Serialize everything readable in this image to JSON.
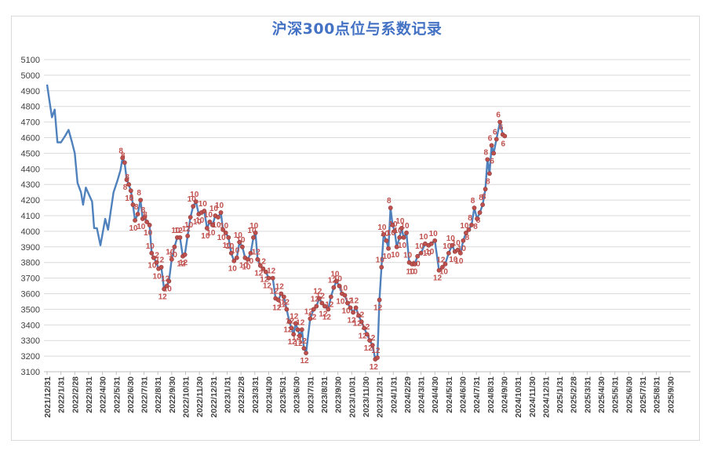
{
  "chart_data": {
    "type": "line",
    "title": "沪深300点位与系数记录",
    "xlabel": "",
    "ylabel": "",
    "ylim": [
      3100,
      5100
    ],
    "ytick_step": 100,
    "grid": true,
    "legend": "none",
    "colors": {
      "line": "#4f81bd",
      "marker": "#c0504d",
      "label": "#c0504d",
      "grid": "#d9d9d9"
    },
    "x_ticks": [
      "2021/12/31",
      "2022/1/31",
      "2022/2/28",
      "2022/3/31",
      "2022/4/30",
      "2022/5/31",
      "2022/6/30",
      "2022/7/31",
      "2022/8/31",
      "2022/9/30",
      "2022/10/31",
      "2022/11/30",
      "2022/12/31",
      "2023/1/31",
      "2023/2/28",
      "2023/3/31",
      "2023/4/30",
      "2023/5/31",
      "2023/6/30",
      "2023/7/31",
      "2023/8/31",
      "2023/9/30",
      "2023/10/31",
      "2023/11/30",
      "2023/12/31",
      "2024/1/31",
      "2024/2/29",
      "2024/3/31",
      "2024/4/30",
      "2024/5/31",
      "2024/6/30",
      "2024/7/31",
      "2024/8/31",
      "2024/9/30",
      "2024/10/31",
      "2024/11/30",
      "2024/12/31",
      "2025/1/31",
      "2025/2/28",
      "2025/3/31",
      "2025/4/30",
      "2025/5/31",
      "2025/6/30",
      "2025/7/31",
      "2025/8/31",
      "2025/9/30"
    ],
    "series": [
      {
        "points": [
          [
            0.0,
            4940,
            null
          ],
          [
            0.2,
            4820,
            null
          ],
          [
            0.35,
            4730,
            null
          ],
          [
            0.55,
            4780,
            null
          ],
          [
            0.75,
            4570,
            null
          ],
          [
            1.0,
            4570,
            null
          ],
          [
            1.3,
            4610,
            null
          ],
          [
            1.55,
            4650,
            null
          ],
          [
            1.8,
            4570,
            null
          ],
          [
            2.0,
            4500,
            null
          ],
          [
            2.2,
            4310,
            null
          ],
          [
            2.45,
            4250,
            null
          ],
          [
            2.6,
            4170,
            null
          ],
          [
            2.8,
            4280,
            null
          ],
          [
            3.1,
            4220,
            null
          ],
          [
            3.25,
            4190,
            null
          ],
          [
            3.4,
            4020,
            null
          ],
          [
            3.6,
            4020,
            null
          ],
          [
            3.85,
            3910,
            null
          ],
          [
            4.2,
            4080,
            null
          ],
          [
            4.4,
            4010,
            null
          ],
          [
            4.6,
            4130,
            null
          ],
          [
            4.8,
            4250,
            null
          ],
          [
            5.1,
            4330,
            null
          ],
          [
            5.3,
            4390,
            null
          ],
          [
            5.45,
            4470,
            "8"
          ],
          [
            5.6,
            4440,
            "8"
          ],
          [
            5.75,
            4330,
            "8"
          ],
          [
            5.9,
            4300,
            "8"
          ],
          [
            6.05,
            4260,
            "10"
          ],
          [
            6.2,
            4170,
            "8"
          ],
          [
            6.35,
            4070,
            "10"
          ],
          [
            6.55,
            4110,
            "8"
          ],
          [
            6.75,
            4200,
            "8"
          ],
          [
            6.9,
            4080,
            "10"
          ],
          [
            7.05,
            4090,
            "8"
          ],
          [
            7.2,
            4060,
            "8"
          ],
          [
            7.4,
            4040,
            "10"
          ],
          [
            7.55,
            3860,
            "10"
          ],
          [
            7.7,
            3830,
            "10"
          ],
          [
            7.9,
            3800,
            "12"
          ],
          [
            8.05,
            3760,
            "10"
          ],
          [
            8.25,
            3770,
            "12"
          ],
          [
            8.45,
            3630,
            "12"
          ],
          [
            8.65,
            3650,
            "12"
          ],
          [
            8.8,
            3680,
            "10"
          ],
          [
            9.0,
            3820,
            "10"
          ],
          [
            9.2,
            3900,
            "10"
          ],
          [
            9.4,
            3960,
            "10"
          ],
          [
            9.6,
            3960,
            "12"
          ],
          [
            9.8,
            3840,
            "12"
          ],
          [
            9.95,
            3850,
            "12"
          ],
          [
            10.15,
            3970,
            "12"
          ],
          [
            10.35,
            4090,
            "10"
          ],
          [
            10.55,
            4160,
            "10"
          ],
          [
            10.75,
            4190,
            "10"
          ],
          [
            10.95,
            4110,
            "10"
          ],
          [
            11.15,
            4120,
            "10"
          ],
          [
            11.35,
            4130,
            "10"
          ],
          [
            11.55,
            4020,
            "10"
          ],
          [
            11.75,
            4060,
            "10"
          ],
          [
            11.95,
            4040,
            "10"
          ],
          [
            12.15,
            4100,
            "10"
          ],
          [
            12.35,
            4090,
            "10"
          ],
          [
            12.55,
            4120,
            "10"
          ],
          [
            12.7,
            4010,
            "10"
          ],
          [
            12.9,
            3990,
            "10"
          ],
          [
            13.1,
            3960,
            "10"
          ],
          [
            13.3,
            3860,
            "10"
          ],
          [
            13.5,
            3810,
            "10"
          ],
          [
            13.7,
            3830,
            "10"
          ],
          [
            13.9,
            3930,
            "10"
          ],
          [
            14.1,
            3900,
            "10"
          ],
          [
            14.3,
            3830,
            "10"
          ],
          [
            14.5,
            3820,
            "10"
          ],
          [
            14.7,
            3860,
            "10"
          ],
          [
            14.9,
            3960,
            "10"
          ],
          [
            15.05,
            3990,
            "10"
          ],
          [
            15.2,
            3820,
            "12"
          ],
          [
            15.4,
            3780,
            "12"
          ],
          [
            15.6,
            3760,
            "12"
          ],
          [
            15.8,
            3740,
            "12"
          ],
          [
            16.0,
            3700,
            "12"
          ],
          [
            16.3,
            3700,
            "12"
          ],
          [
            16.5,
            3570,
            "12"
          ],
          [
            16.7,
            3560,
            "12"
          ],
          [
            16.9,
            3600,
            "12"
          ],
          [
            17.1,
            3580,
            "12"
          ],
          [
            17.3,
            3500,
            "12"
          ],
          [
            17.5,
            3420,
            "12"
          ],
          [
            17.65,
            3380,
            "12"
          ],
          [
            17.8,
            3340,
            "12"
          ],
          [
            17.95,
            3410,
            "12"
          ],
          [
            18.1,
            3370,
            "12"
          ],
          [
            18.25,
            3330,
            "12"
          ],
          [
            18.4,
            3370,
            "12"
          ],
          [
            18.55,
            3250,
            "12"
          ],
          [
            18.7,
            3220,
            "12"
          ],
          [
            19.0,
            3440,
            "12"
          ],
          [
            19.25,
            3500,
            "12"
          ],
          [
            19.45,
            3520,
            "12"
          ],
          [
            19.65,
            3570,
            "12"
          ],
          [
            19.85,
            3540,
            "12"
          ],
          [
            20.05,
            3520,
            "12"
          ],
          [
            20.3,
            3500,
            "12"
          ],
          [
            20.5,
            3580,
            "12"
          ],
          [
            20.7,
            3640,
            "12"
          ],
          [
            20.9,
            3680,
            "10"
          ],
          [
            21.1,
            3650,
            "10"
          ],
          [
            21.3,
            3600,
            "10"
          ],
          [
            21.5,
            3590,
            "10"
          ],
          [
            21.7,
            3540,
            "10"
          ],
          [
            21.9,
            3510,
            "12"
          ],
          [
            22.1,
            3480,
            "12"
          ],
          [
            22.3,
            3510,
            "12"
          ],
          [
            22.5,
            3460,
            "12"
          ],
          [
            22.7,
            3420,
            "12"
          ],
          [
            22.9,
            3380,
            "12"
          ],
          [
            23.1,
            3340,
            "12"
          ],
          [
            23.3,
            3300,
            "12"
          ],
          [
            23.5,
            3270,
            "12"
          ],
          [
            23.7,
            3180,
            "12"
          ],
          [
            23.85,
            3190,
            "12"
          ],
          [
            24.0,
            3560,
            "12"
          ],
          [
            24.15,
            3770,
            "10"
          ],
          [
            24.3,
            3980,
            "10"
          ],
          [
            24.5,
            3940,
            "10"
          ],
          [
            24.65,
            3890,
            "10"
          ],
          [
            24.8,
            4150,
            "8"
          ],
          [
            24.95,
            4040,
            "10"
          ],
          [
            25.1,
            4000,
            "10"
          ],
          [
            25.25,
            3900,
            "10"
          ],
          [
            25.45,
            3960,
            "10"
          ],
          [
            25.6,
            4020,
            "10"
          ],
          [
            25.75,
            3960,
            "10"
          ],
          [
            25.95,
            3990,
            "10"
          ],
          [
            26.15,
            3800,
            "10"
          ],
          [
            26.35,
            3790,
            "10"
          ],
          [
            26.55,
            3790,
            "10"
          ],
          [
            26.75,
            3840,
            "10"
          ],
          [
            27.0,
            3860,
            "10"
          ],
          [
            27.3,
            3920,
            "10"
          ],
          [
            27.55,
            3910,
            "10"
          ],
          [
            27.75,
            3920,
            "10"
          ],
          [
            28.0,
            3940,
            "10"
          ],
          [
            28.3,
            3750,
            "12"
          ],
          [
            28.55,
            3770,
            "12"
          ],
          [
            28.75,
            3790,
            "10"
          ],
          [
            29.0,
            3860,
            "10"
          ],
          [
            29.25,
            3910,
            "10"
          ],
          [
            29.45,
            3870,
            "10"
          ],
          [
            29.65,
            3880,
            "10"
          ],
          [
            29.85,
            3860,
            "10"
          ],
          [
            30.05,
            3940,
            "10"
          ],
          [
            30.25,
            3990,
            "10"
          ],
          [
            30.45,
            4010,
            "8"
          ],
          [
            30.65,
            4040,
            "8"
          ],
          [
            30.85,
            4150,
            "8"
          ],
          [
            31.05,
            4080,
            "8"
          ],
          [
            31.25,
            4120,
            "8"
          ],
          [
            31.45,
            4170,
            "8"
          ],
          [
            31.65,
            4270,
            "8"
          ],
          [
            31.8,
            4460,
            "8"
          ],
          [
            31.95,
            4370,
            "8"
          ],
          [
            32.1,
            4550,
            "6"
          ],
          [
            32.25,
            4500,
            "6"
          ],
          [
            32.45,
            4590,
            "6"
          ],
          [
            32.7,
            4700,
            "6"
          ],
          [
            32.9,
            4620,
            "6"
          ],
          [
            33.05,
            4610,
            "6"
          ]
        ]
      }
    ]
  }
}
